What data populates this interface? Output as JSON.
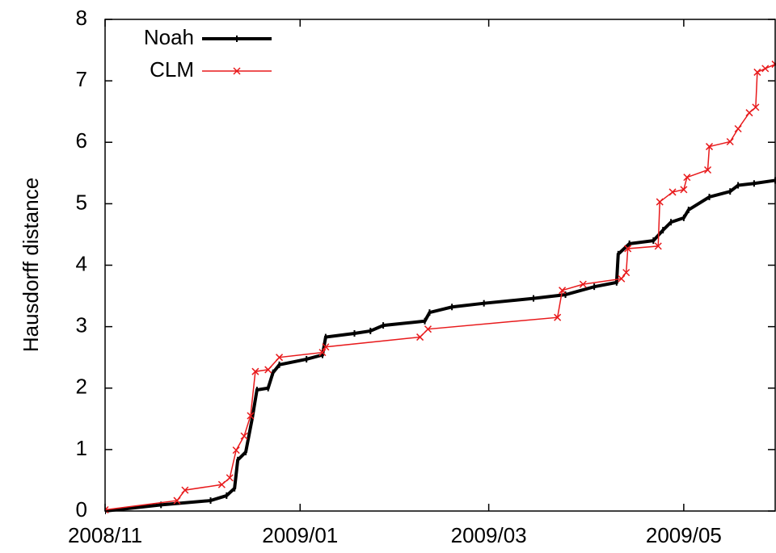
{
  "chart_data": {
    "type": "line",
    "ylabel": "Hausdorff distance",
    "xlim": [
      0,
      209.6
    ],
    "ylim": [
      0,
      8
    ],
    "xticks": [
      {
        "value": 0,
        "label": "2008/11"
      },
      {
        "value": 61,
        "label": "2009/01"
      },
      {
        "value": 120,
        "label": "2009/03"
      },
      {
        "value": 181,
        "label": "2009/05"
      }
    ],
    "yticks": [
      0,
      1,
      2,
      3,
      4,
      5,
      6,
      7,
      8
    ],
    "legend": "top-left",
    "series": [
      {
        "name": "Noah",
        "color": "#000000",
        "marker": "tick",
        "x": [
          0,
          17.5,
          33,
          38,
          40.5,
          41.5,
          44,
          46,
          47.5,
          51,
          52.5,
          54.5,
          63,
          68,
          69,
          78,
          83,
          87,
          100,
          101.5,
          108.5,
          118.5,
          134,
          144,
          153,
          160,
          160.5,
          164,
          171.5,
          174.5,
          177,
          181,
          182.5,
          189,
          195.5,
          198,
          203,
          209.6
        ],
        "values": [
          0,
          0.1,
          0.17,
          0.25,
          0.37,
          0.83,
          0.96,
          1.5,
          1.97,
          2.0,
          2.25,
          2.38,
          2.47,
          2.54,
          2.83,
          2.89,
          2.93,
          3.02,
          3.09,
          3.23,
          3.32,
          3.38,
          3.46,
          3.52,
          3.65,
          3.72,
          4.18,
          4.35,
          4.4,
          4.57,
          4.7,
          4.77,
          4.9,
          5.11,
          5.2,
          5.3,
          5.33,
          5.38
        ]
      },
      {
        "name": "CLM",
        "color": "#e8191b",
        "marker": "x",
        "x": [
          0,
          22.5,
          25,
          36.5,
          39,
          41,
          43.5,
          45.5,
          47,
          51,
          54.5,
          68,
          69,
          98.5,
          101,
          141.5,
          143,
          149.5,
          161.5,
          163,
          163.5,
          173,
          173.5,
          177.5,
          181,
          182,
          188.5,
          189,
          195.5,
          198,
          201.5,
          203.5,
          204,
          206.5,
          209.6
        ],
        "values": [
          0.02,
          0.17,
          0.34,
          0.43,
          0.54,
          0.99,
          1.22,
          1.55,
          2.27,
          2.3,
          2.5,
          2.58,
          2.67,
          2.83,
          2.96,
          3.15,
          3.59,
          3.69,
          3.78,
          3.88,
          4.27,
          4.31,
          5.03,
          5.19,
          5.23,
          5.43,
          5.55,
          5.93,
          6.01,
          6.22,
          6.48,
          6.57,
          7.14,
          7.2,
          7.27
        ]
      }
    ]
  }
}
